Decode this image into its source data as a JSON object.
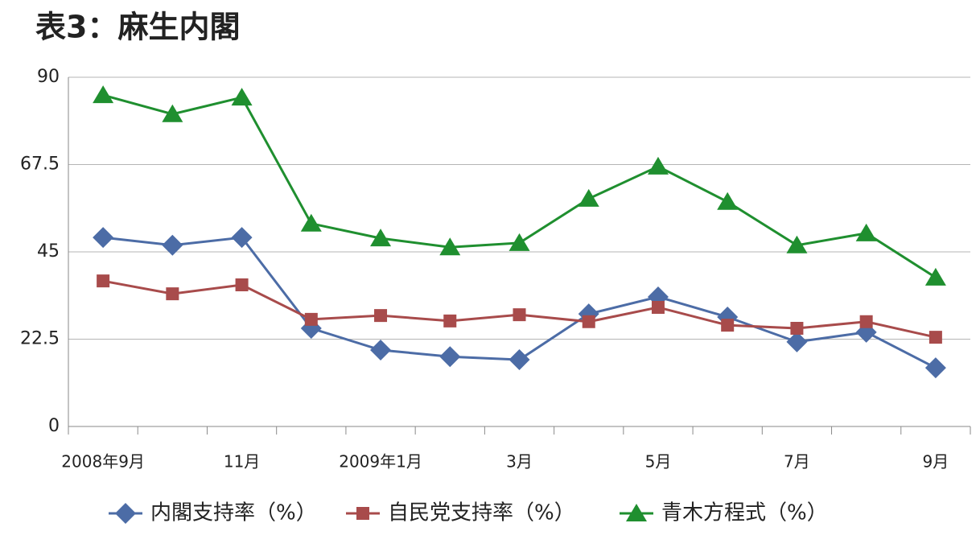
{
  "chart_data": {
    "type": "line",
    "title": "表3：麻生内閣",
    "categories": [
      "2008年9月",
      null,
      "11月",
      null,
      "2009年1月",
      null,
      "3月",
      null,
      "5月",
      null,
      "7月",
      null,
      "9月"
    ],
    "series": [
      {
        "name": "内閣支持率（%）",
        "color": "#4c6ca6",
        "marker": "diamond",
        "values": [
          48.7,
          46.7,
          48.7,
          25.3,
          19.7,
          18.0,
          17.2,
          29.0,
          33.4,
          28.2,
          21.8,
          24.3,
          15.1
        ]
      },
      {
        "name": "自民党支持率（%）",
        "color": "#a84b4b",
        "marker": "square",
        "values": [
          37.5,
          34.2,
          36.5,
          27.6,
          28.6,
          27.2,
          28.8,
          27.0,
          30.7,
          26.1,
          25.3,
          27.0,
          23.0
        ]
      },
      {
        "name": "青木方程式（%）",
        "color": "#1f8f2f",
        "marker": "triangle",
        "values": [
          85.4,
          80.5,
          84.8,
          52.3,
          48.5,
          46.2,
          47.3,
          58.7,
          67.0,
          57.9,
          46.7,
          49.8,
          38.4
        ]
      }
    ],
    "ylim": [
      0,
      90
    ],
    "yticks": [
      0,
      22.5,
      45,
      67.5,
      90
    ],
    "grid": true,
    "legend": "bottom"
  }
}
